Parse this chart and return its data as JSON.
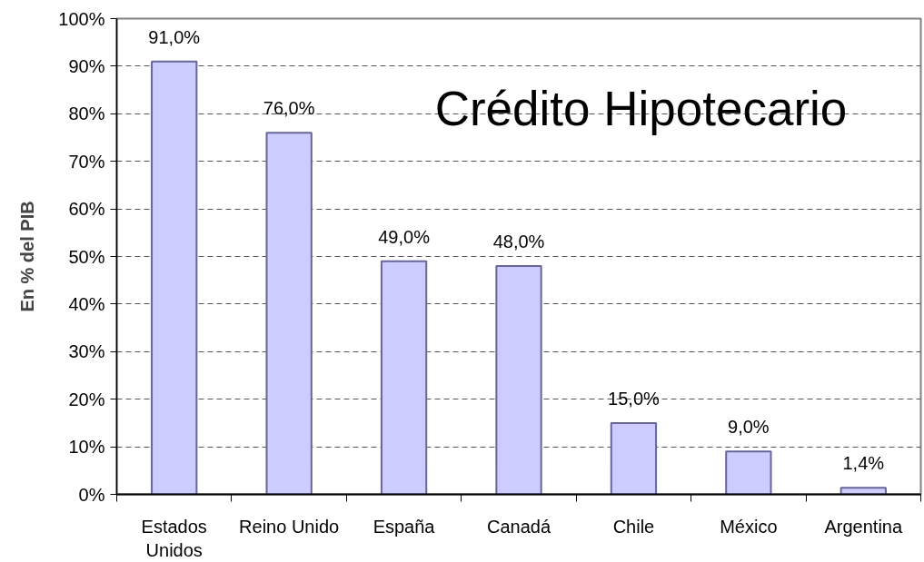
{
  "chart_data": {
    "type": "bar",
    "title": "Crédito Hipotecario",
    "ylabel": "En % del PIB",
    "categories": [
      "Estados Unidos",
      "Reino Unido",
      "España",
      "Canadá",
      "Chile",
      "México",
      "Argentina"
    ],
    "values": [
      91,
      76,
      49,
      48,
      15,
      9,
      1.4
    ],
    "value_labels": [
      "91,0%",
      "76,0%",
      "49,0%",
      "48,0%",
      "15,0%",
      "9,0%",
      "1,4%"
    ],
    "color": "#ccccff",
    "ylim": [
      0,
      100
    ],
    "yticks": [
      {
        "value": 0,
        "label": "0%"
      },
      {
        "value": 10,
        "label": "10%"
      },
      {
        "value": 20,
        "label": "20%"
      },
      {
        "value": 30,
        "label": "30%"
      },
      {
        "value": 40,
        "label": "40%"
      },
      {
        "value": 50,
        "label": "50%"
      },
      {
        "value": 60,
        "label": "60%"
      },
      {
        "value": 70,
        "label": "70%"
      },
      {
        "value": 80,
        "label": "80%"
      },
      {
        "value": 90,
        "label": "90%"
      },
      {
        "value": 100,
        "label": "100%"
      }
    ],
    "grid": "y"
  }
}
